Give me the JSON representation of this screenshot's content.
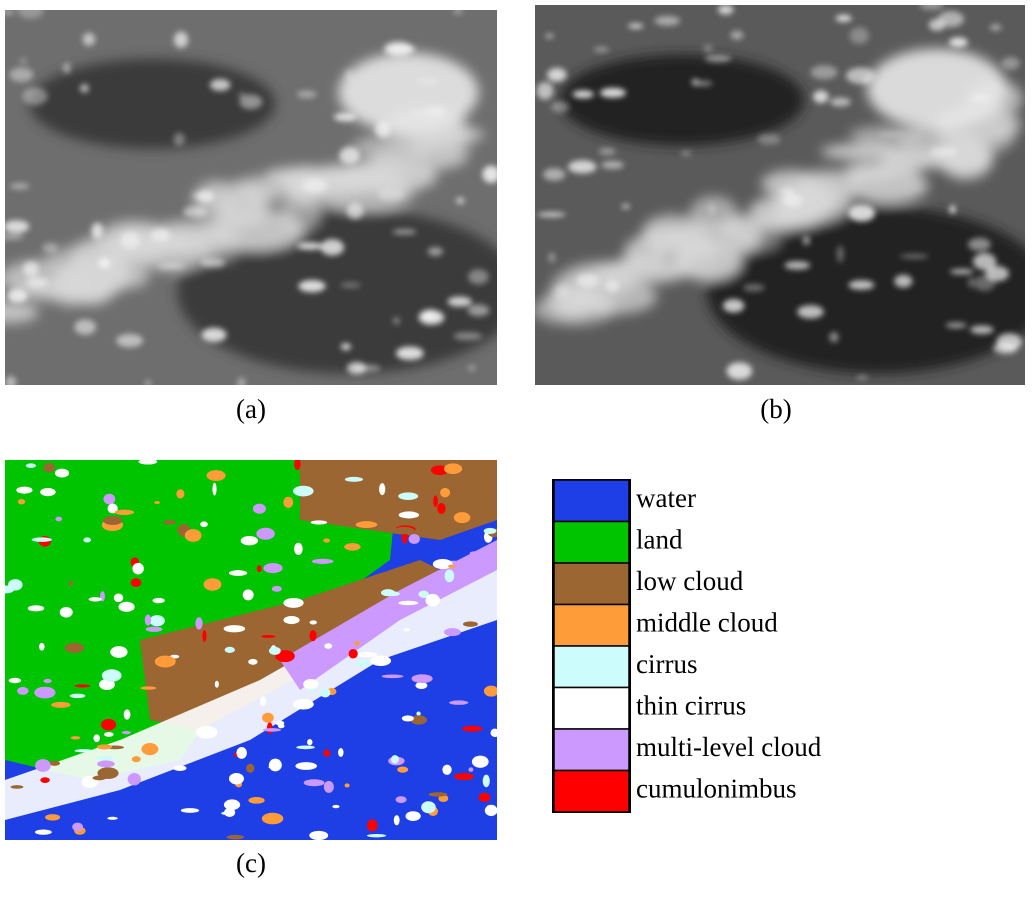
{
  "panels": [
    {
      "label": "(a)"
    },
    {
      "label": "(b)"
    },
    {
      "label": "(c)"
    }
  ],
  "legend": {
    "items": [
      {
        "label": "water",
        "color": "#1f3fe6"
      },
      {
        "label": "land",
        "color": "#00c400"
      },
      {
        "label": "low cloud",
        "color": "#9c6633"
      },
      {
        "label": "middle cloud",
        "color": "#ff9c3a"
      },
      {
        "label": "cirrus",
        "color": "#ccfcfc"
      },
      {
        "label": "thin cirrus",
        "color": "#ffffff"
      },
      {
        "label": "multi-level cloud",
        "color": "#cc99ff"
      },
      {
        "label": "cumulonimbus",
        "color": "#ff0000"
      }
    ]
  }
}
